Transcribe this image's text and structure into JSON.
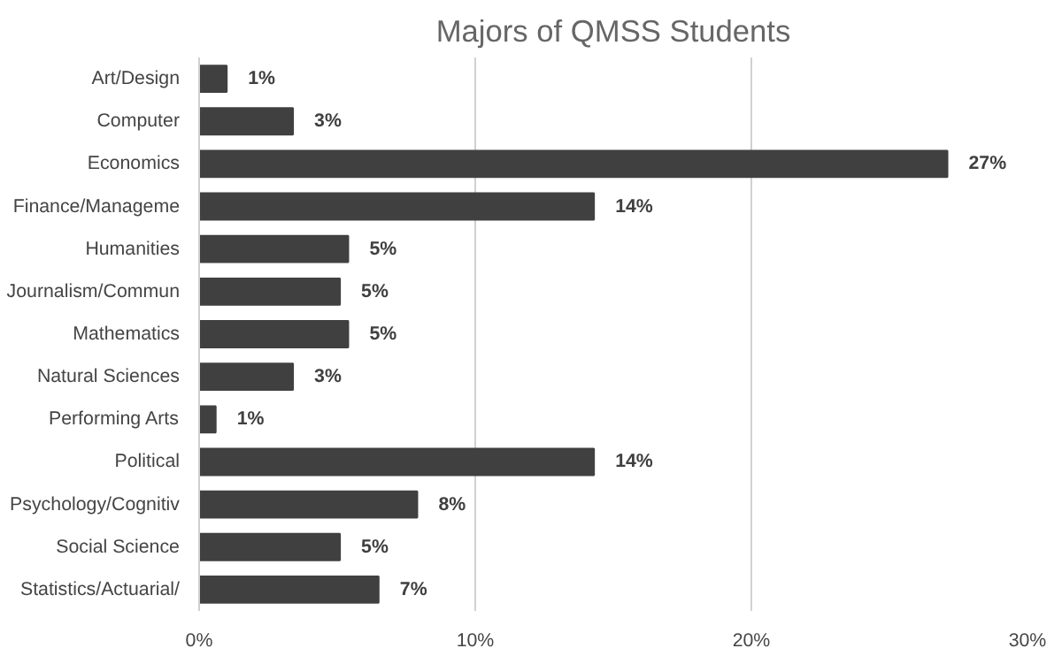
{
  "chart_data": {
    "type": "bar",
    "orientation": "horizontal",
    "title": "Majors of QMSS Students",
    "categories": [
      "Art/Design",
      "Computer",
      "Economics",
      "Finance/Manageme",
      "Humanities",
      "Journalism/Commun",
      "Mathematics",
      "Natural Sciences",
      "Performing Arts",
      "Political",
      "Psychology/Cognitiv",
      "Social Science",
      "Statistics/Actuarial/"
    ],
    "values": [
      1.0,
      3.4,
      27.1,
      14.3,
      5.4,
      5.1,
      5.4,
      3.4,
      0.6,
      14.3,
      7.9,
      5.1,
      6.5
    ],
    "value_labels": [
      "1%",
      "3%",
      "27%",
      "14%",
      "5%",
      "5%",
      "5%",
      "3%",
      "1%",
      "14%",
      "8%",
      "5%",
      "7%"
    ],
    "color": "#404040",
    "xlim": [
      0,
      30
    ],
    "xticks": [
      {
        "value": 0,
        "label": "0%"
      },
      {
        "value": 10,
        "label": "10%"
      },
      {
        "value": 20,
        "label": "20%"
      },
      {
        "value": 30,
        "label": "30%"
      }
    ],
    "grid": "x"
  }
}
